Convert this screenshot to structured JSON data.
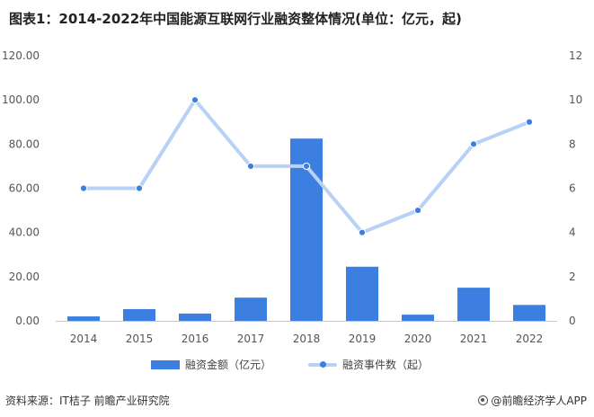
{
  "title": "图表1：2014-2022年中国能源互联网行业融资整体情况(单位：亿元，起)",
  "source": "资料来源：IT桔子 前瞻产业研究院",
  "brand": "@前瞻经济学人APP",
  "colors": {
    "bar": "#3d7fe0",
    "line": "#b7d2f5",
    "marker": "#3d7fe0"
  },
  "chart_data": {
    "type": "bar",
    "categories": [
      "2014",
      "2015",
      "2016",
      "2017",
      "2018",
      "2019",
      "2020",
      "2021",
      "2022"
    ],
    "series": [
      {
        "name": "融资金额（亿元）",
        "type": "bar",
        "axis": "left",
        "values": [
          2.0,
          5.3,
          3.3,
          10.5,
          82.5,
          24.5,
          2.8,
          15.0,
          7.2
        ]
      },
      {
        "name": "融资事件数（起）",
        "type": "line",
        "axis": "right",
        "values": [
          6,
          6,
          10,
          7,
          7,
          4,
          5,
          8,
          9
        ]
      }
    ],
    "y_left": {
      "lim": [
        0,
        120
      ],
      "ticks": [
        "0.00",
        "20.00",
        "40.00",
        "60.00",
        "80.00",
        "100.00",
        "120.00"
      ]
    },
    "y_right": {
      "lim": [
        0,
        12
      ],
      "ticks": [
        "0",
        "2",
        "4",
        "6",
        "8",
        "10",
        "12"
      ]
    },
    "legend": "bottom",
    "grid": false
  }
}
